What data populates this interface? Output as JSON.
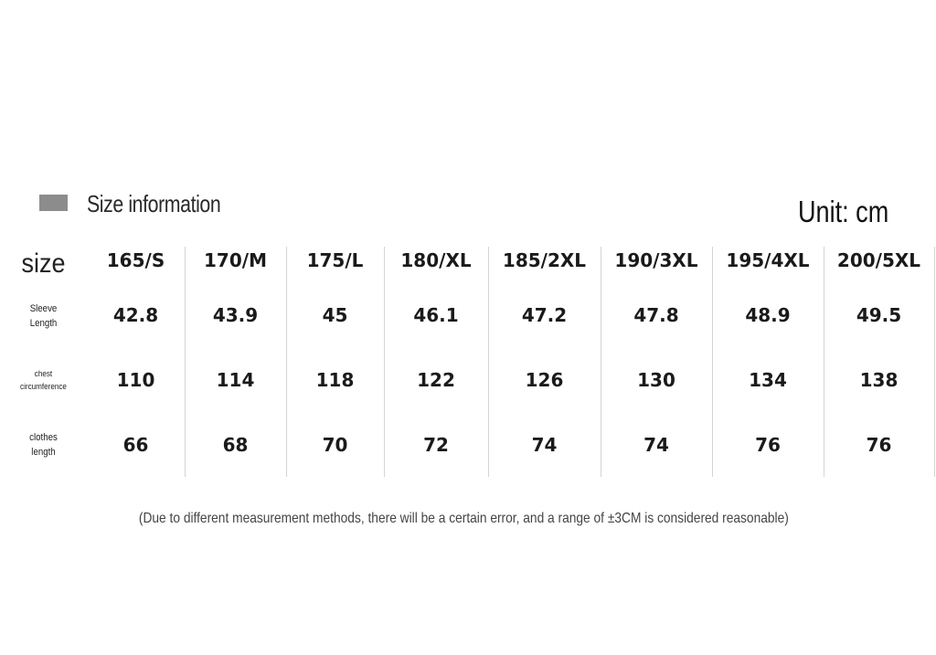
{
  "header": {
    "title": "Size information",
    "unit": "Unit: cm"
  },
  "table": {
    "header_label": "size",
    "columns": [
      "165/S",
      "170/M",
      "175/L",
      "180/XL",
      "185/2XL",
      "190/3XL",
      "195/4XL",
      "200/5XL"
    ],
    "rows": [
      {
        "label_lines": [
          "Sleeve",
          "Length"
        ],
        "values": [
          "42.8",
          "43.9",
          "45",
          "46.1",
          "47.2",
          "47.8",
          "48.9",
          "49.5"
        ]
      },
      {
        "label_lines": [
          "chest",
          "circumference"
        ],
        "values": [
          "110",
          "114",
          "118",
          "122",
          "126",
          "130",
          "134",
          "138"
        ]
      },
      {
        "label_lines": [
          "clothes",
          "length"
        ],
        "values": [
          "66",
          "68",
          "70",
          "72",
          "74",
          "74",
          "76",
          "76"
        ]
      }
    ]
  },
  "footer": {
    "note": "(Due to different measurement methods, there will be a certain error, and a range of ±3CM is considered reasonable)"
  },
  "colors": {
    "swatch": "#8c8c8c",
    "divider": "#d4d4d4"
  }
}
